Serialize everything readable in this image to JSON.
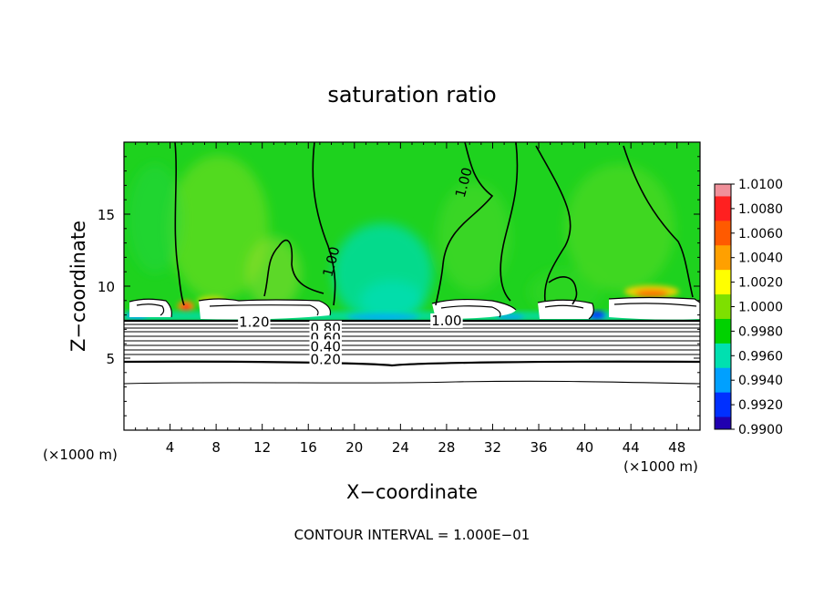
{
  "chart_data": {
    "type": "heatmap",
    "title": "saturation ratio",
    "xlabel": "X−coordinate",
    "ylabel": "Z−coordinate",
    "x_unit_left": "(×1000 m)",
    "x_unit_right": "(×1000 m)",
    "footer": "CONTOUR INTERVAL = 1.000E−01",
    "xlim": [
      0,
      50
    ],
    "ylim": [
      0,
      20
    ],
    "x_ticks": [
      4,
      8,
      12,
      16,
      20,
      24,
      28,
      32,
      36,
      40,
      44,
      48
    ],
    "y_ticks": [
      5,
      10,
      15
    ],
    "colorbar": {
      "range": [
        0.99,
        1.01
      ],
      "labels": [
        "1.0100",
        "1.0080",
        "1.0060",
        "1.0040",
        "1.0020",
        "1.0000",
        "0.9980",
        "0.9960",
        "0.9940",
        "0.9920",
        "0.9900"
      ],
      "colors": [
        "#f0909a",
        "#ff2020",
        "#ff5a00",
        "#ffa000",
        "#ffff00",
        "#7ee000",
        "#00d200",
        "#00e0b0",
        "#00a0ff",
        "#0030ff",
        "#2000b0",
        "#7000a0"
      ]
    },
    "contour_labels": [
      {
        "text": "1.00",
        "x": 29.5,
        "y": 17.2
      },
      {
        "text": "1.00",
        "x": 18.0,
        "y": 11.7
      },
      {
        "text": "1.20",
        "x": 11.3,
        "y": 7.5
      },
      {
        "text": "1.00",
        "x": 28.0,
        "y": 7.6
      },
      {
        "text": "0.80",
        "x": 17.5,
        "y": 7.1
      },
      {
        "text": "0.60",
        "x": 17.5,
        "y": 6.4
      },
      {
        "text": "0.40",
        "x": 17.5,
        "y": 5.8
      },
      {
        "text": "0.20",
        "x": 17.5,
        "y": 4.9
      }
    ]
  }
}
